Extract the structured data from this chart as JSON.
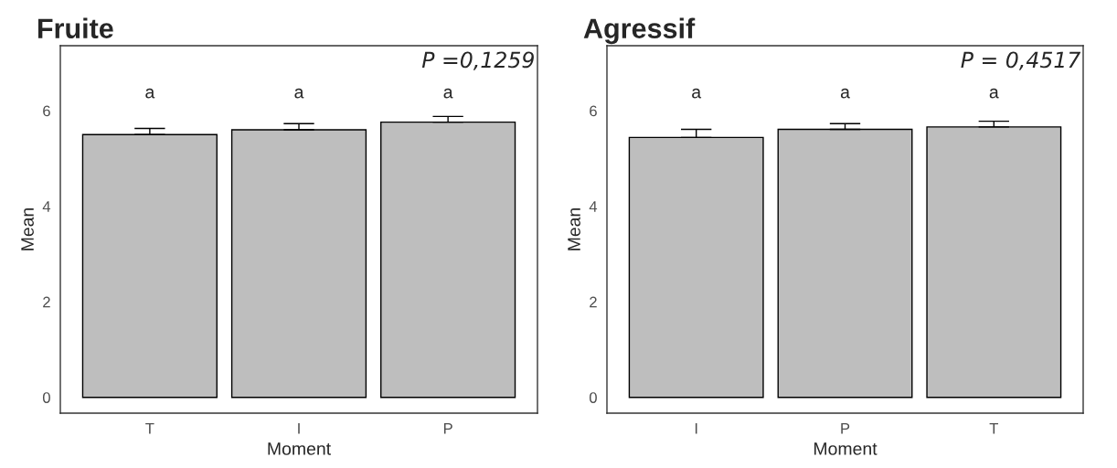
{
  "chart_data": [
    {
      "type": "bar",
      "title": "Fruite",
      "xlabel": "Moment",
      "ylabel": "Mean",
      "categories": [
        "T",
        "I",
        "P"
      ],
      "values": [
        5.5,
        5.6,
        5.76
      ],
      "color": "#bebebe",
      "errors": [
        [
          5.5,
          5.63
        ],
        [
          5.6,
          5.73
        ],
        [
          5.76,
          5.88
        ]
      ],
      "ylim": [
        -0.33,
        7.36
      ],
      "yticks": [
        0,
        2,
        4,
        6
      ],
      "annotations": [
        "a",
        "a",
        "a",
        "P =0,1259"
      ]
    },
    {
      "type": "bar",
      "title": "Agressif",
      "xlabel": "Moment",
      "ylabel": "Mean",
      "categories": [
        "I",
        "P",
        "T"
      ],
      "values": [
        5.44,
        5.61,
        5.66
      ],
      "color": "#bebebe",
      "errors": [
        [
          5.44,
          5.61
        ],
        [
          5.61,
          5.73
        ],
        [
          5.66,
          5.78
        ]
      ],
      "ylim": [
        -0.33,
        7.36
      ],
      "yticks": [
        0,
        2,
        4,
        6
      ],
      "annotations": [
        "a",
        "a",
        "a",
        "P = 0,4517"
      ]
    }
  ]
}
